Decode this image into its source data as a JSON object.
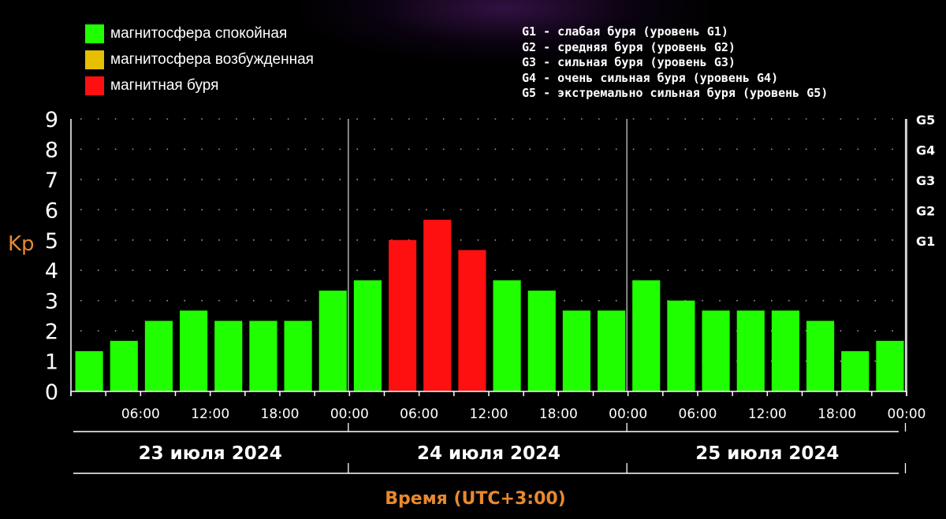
{
  "legend": [
    {
      "label": "магнитосфера спокойная",
      "color": "#1fff00"
    },
    {
      "label": "магнитосфера возбужденная",
      "color": "#e6c000"
    },
    {
      "label": "магнитная буря",
      "color": "#ff1010"
    }
  ],
  "storm_levels": [
    "G1 - слабая буря (уровень G1)",
    "G2 - средняя буря (уровень G2)",
    "G3 - сильная буря (уровень G3)",
    "G4 - очень сильная буря (уровень G4)",
    "G5 - экстремально сильная буря (уровень G5)"
  ],
  "chart_data": {
    "type": "bar",
    "ylabel": "Kp",
    "xlabel": "Время (UTC+3:00)",
    "ylim": [
      0,
      9
    ],
    "y_ticks": [
      "0",
      "1",
      "2",
      "3",
      "4",
      "5",
      "6",
      "7",
      "8",
      "9"
    ],
    "right_ticks": [
      {
        "label": "G1",
        "value": 5
      },
      {
        "label": "G2",
        "value": 6
      },
      {
        "label": "G3",
        "value": 7
      },
      {
        "label": "G4",
        "value": 8
      },
      {
        "label": "G5",
        "value": 9
      }
    ],
    "grid": "dotted",
    "x_tick_labels": [
      "06:00",
      "12:00",
      "18:00",
      "00:00",
      "06:00",
      "12:00",
      "18:00",
      "00:00",
      "06:00",
      "12:00",
      "18:00",
      "00:00"
    ],
    "days": [
      "23 июля 2024",
      "24 июля 2024",
      "25 июля 2024"
    ],
    "values": [
      1.33,
      1.67,
      2.33,
      2.67,
      2.33,
      2.33,
      2.33,
      3.33,
      3.67,
      5.0,
      5.67,
      4.67,
      3.67,
      3.33,
      2.67,
      2.67,
      3.67,
      3.0,
      2.67,
      2.67,
      2.67,
      2.33,
      1.33,
      1.67
    ],
    "levels": [
      "quiet",
      "quiet",
      "quiet",
      "quiet",
      "quiet",
      "quiet",
      "quiet",
      "quiet",
      "quiet",
      "storm",
      "storm",
      "storm",
      "quiet",
      "quiet",
      "quiet",
      "quiet",
      "quiet",
      "quiet",
      "quiet",
      "quiet",
      "quiet",
      "quiet",
      "quiet",
      "quiet"
    ],
    "level_colors": {
      "quiet": "#1fff00",
      "excited": "#e6c000",
      "storm": "#ff1010"
    }
  }
}
